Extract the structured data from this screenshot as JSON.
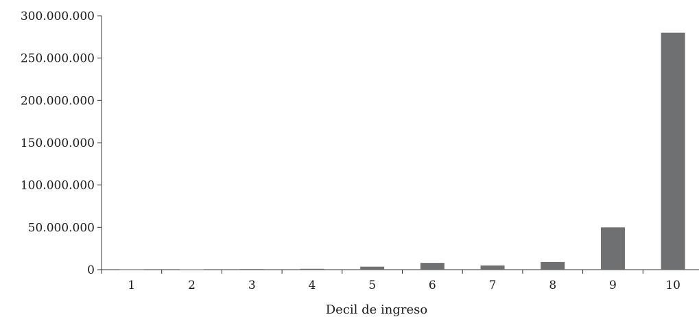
{
  "chart_data": {
    "type": "bar",
    "title": "",
    "xlabel": "Decil de ingreso",
    "ylabel": "",
    "categories": [
      "1",
      "2",
      "3",
      "4",
      "5",
      "6",
      "7",
      "8",
      "9",
      "10"
    ],
    "values": [
      200000,
      400000,
      700000,
      1000000,
      3500000,
      8000000,
      5000000,
      9000000,
      50000000,
      280000000
    ],
    "ylim": [
      0,
      300000000
    ],
    "yticks": [
      0,
      50000000,
      100000000,
      150000000,
      200000000,
      250000000,
      300000000
    ],
    "ytick_labels": [
      "0",
      "50.000.000",
      "100.000.000",
      "150.000.000",
      "200.000.000",
      "250.000.000",
      "300.000.000"
    ],
    "bar_color": "#6f7072",
    "grid": false,
    "legend": "none"
  }
}
